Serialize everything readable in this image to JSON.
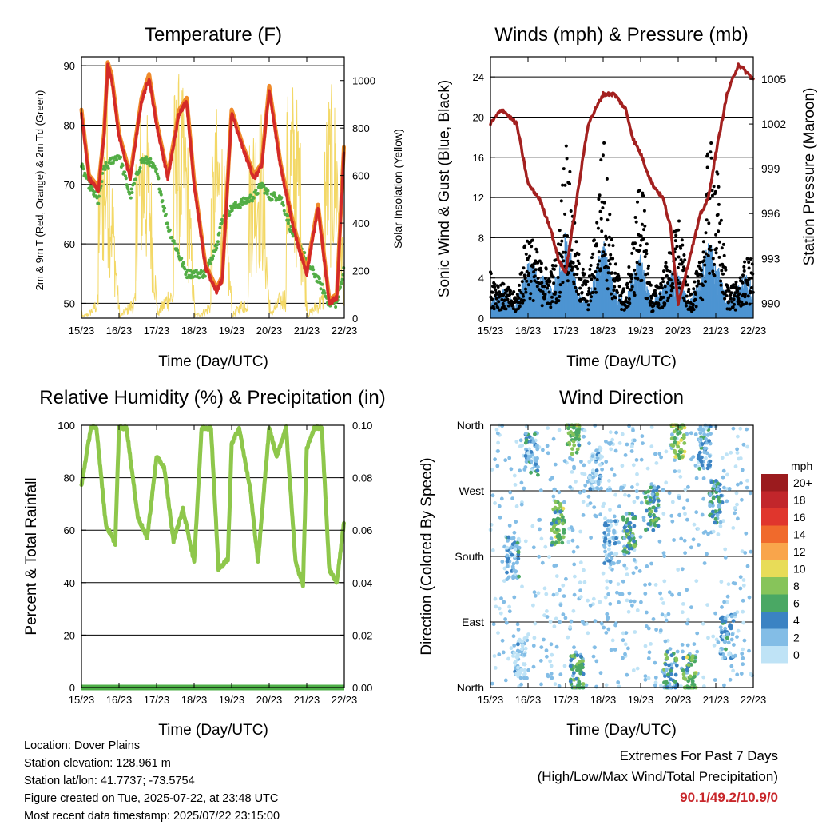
{
  "x_ticks": [
    "15/23",
    "16/23",
    "17/23",
    "18/23",
    "19/23",
    "20/23",
    "21/23",
    "22/23"
  ],
  "xlabel": "Time (Day/UTC)",
  "panels": {
    "temperature": {
      "title": "Temperature (F)",
      "ylabel_left": "2m & 9m T (Red, Orange) & 2m Td (Green)",
      "ylabel_right": "Solar Insolation (Yellow)",
      "left_ticks": [
        "50",
        "60",
        "70",
        "80",
        "90"
      ],
      "right_ticks": [
        "0",
        "200",
        "400",
        "600",
        "800",
        "1000"
      ]
    },
    "winds": {
      "title": "Winds (mph) & Pressure (mb)",
      "ylabel_left": "Sonic Wind & Gust (Blue, Black)",
      "ylabel_right": "Station Pressure (Maroon)",
      "left_ticks": [
        "0",
        "4",
        "8",
        "12",
        "16",
        "20",
        "24"
      ],
      "right_ticks": [
        "990",
        "993",
        "996",
        "999",
        "1002",
        "1005"
      ]
    },
    "humidity": {
      "title": "Relative Humidity (%) & Precipitation (in)",
      "ylabel_left": "Percent & Total Rainfall",
      "left_ticks": [
        "0",
        "20",
        "40",
        "60",
        "80",
        "100"
      ],
      "right_ticks": [
        "0.00",
        "0.02",
        "0.04",
        "0.06",
        "0.08",
        "0.10"
      ]
    },
    "direction": {
      "title": "Wind Direction",
      "ylabel_left": "Direction (Colored By Speed)",
      "left_ticks": [
        "North",
        "East",
        "South",
        "West",
        "North"
      ],
      "legend_title": "mph",
      "legend_labels": [
        "20+",
        "18",
        "16",
        "14",
        "12",
        "10",
        "8",
        "6",
        "4",
        "2",
        "0"
      ],
      "legend_colors": [
        "#9b1b1e",
        "#c2262b",
        "#e0362d",
        "#f06a2c",
        "#f9a54b",
        "#e8dc58",
        "#87c45a",
        "#4aa864",
        "#3b83c3",
        "#83bde6",
        "#bfe3f6"
      ]
    }
  },
  "info": {
    "location": "Location: Dover Plains",
    "elevation": "Station elevation: 128.961 m",
    "latlon": "Station lat/lon: 41.7737; -73.5754",
    "created": "Figure created on Tue, 2025-07-22, at 23:48 UTC",
    "recent": "Most recent data timestamp: 2025/07/22 23:15:00"
  },
  "extremes": {
    "title": "Extremes For Past 7 Days",
    "subtitle": "(High/Low/Max Wind/Total Precipitation)",
    "values": "90.1/49.2/10.9/0"
  },
  "colors": {
    "temp_2m": "#d42a28",
    "temp_9m": "#f08a2a",
    "dewpoint": "#52ad45",
    "solar": "#f3d866",
    "wind": "#4e94d2",
    "gust": "#000000",
    "pressure": "#a3201f",
    "rh": "#8ec74b",
    "precip": "#4eaf47"
  },
  "chart_data": [
    {
      "type": "line",
      "title": "Temperature (F)",
      "xlabel": "Time (Day/UTC)",
      "ylabel": "2m & 9m T (Red, Orange) & 2m Td (Green)",
      "ylabel_right": "Solar Insolation (Yellow)",
      "x": [
        15.0,
        15.2,
        15.45,
        15.6,
        15.7,
        15.8,
        16.0,
        16.3,
        16.6,
        16.8,
        17.0,
        17.3,
        17.6,
        17.8,
        18.0,
        18.3,
        18.6,
        18.75,
        19.0,
        19.3,
        19.6,
        19.8,
        20.0,
        20.3,
        20.6,
        20.8,
        21.0,
        21.3,
        21.6,
        21.8,
        22.0
      ],
      "ylim": [
        47.5,
        91.5
      ],
      "ylim_right": [
        0,
        1100
      ],
      "series": [
        {
          "name": "2m T",
          "values": [
            82,
            71,
            69,
            78,
            90,
            88,
            78,
            71,
            84,
            88,
            80,
            71,
            82,
            84,
            70,
            56,
            52,
            54,
            82,
            76,
            71,
            73,
            86,
            73,
            64,
            59,
            55,
            66,
            50,
            51,
            77
          ]
        },
        {
          "name": "2m Td",
          "values": [
            73,
            70,
            67,
            73,
            73,
            74,
            75,
            68,
            74,
            74,
            72,
            63,
            58,
            55,
            55,
            55,
            60,
            64,
            66,
            67,
            68,
            70,
            68,
            68,
            62,
            60,
            57,
            54,
            50,
            50,
            56
          ]
        },
        {
          "name": "Solar Insolation",
          "values": [
            50,
            200,
            700,
            900,
            1000,
            700,
            50,
            500,
            950,
            850,
            100,
            900,
            1050,
            900,
            100,
            300,
            900,
            800,
            100,
            600,
            900,
            900,
            80,
            800,
            1050,
            900,
            100,
            600,
            1000,
            950,
            200
          ]
        }
      ]
    },
    {
      "type": "line",
      "title": "Winds (mph) & Pressure (mb)",
      "xlabel": "Time (Day/UTC)",
      "ylabel": "Sonic Wind & Gust (Blue, Black)",
      "ylabel_right": "Station Pressure (Maroon)",
      "x": [
        15.0,
        15.3,
        15.7,
        16.0,
        16.3,
        16.6,
        16.8,
        17.0,
        17.3,
        17.6,
        17.8,
        18.0,
        18.3,
        18.6,
        18.8,
        19.0,
        19.3,
        19.6,
        19.8,
        20.0,
        20.3,
        20.6,
        20.8,
        21.0,
        21.3,
        21.6,
        21.8,
        22.0
      ],
      "ylim": [
        0,
        26
      ],
      "ylim_right": [
        989,
        1006.5
      ],
      "series": [
        {
          "name": "Sonic Wind",
          "values": [
            1,
            2,
            1,
            4,
            3,
            2,
            3,
            6,
            2,
            1,
            3,
            5,
            2,
            1,
            3,
            4,
            1,
            2,
            3,
            3,
            1,
            3,
            5,
            4,
            1,
            2,
            3,
            2
          ]
        },
        {
          "name": "Gust",
          "values": [
            4,
            3,
            2,
            8,
            5,
            4,
            6,
            16,
            6,
            3,
            8,
            16,
            5,
            2,
            7,
            13,
            2,
            4,
            6,
            9,
            2,
            5,
            15,
            14,
            3,
            3,
            5,
            5
          ]
        },
        {
          "name": "Station Pressure",
          "values": [
            1002,
            1003,
            1002,
            998,
            997,
            995,
            993,
            992,
            997,
            1002,
            1003,
            1004,
            1004,
            1003,
            1001,
            1000,
            998,
            997,
            995,
            990,
            993,
            996,
            997,
            1000,
            1004,
            1006,
            1005.5,
            1005
          ]
        }
      ]
    },
    {
      "type": "line",
      "title": "Relative Humidity (%) & Precipitation (in)",
      "xlabel": "Time (Day/UTC)",
      "ylabel": "Percent & Total Rainfall",
      "x": [
        15.0,
        15.25,
        15.4,
        15.65,
        15.9,
        16.0,
        16.2,
        16.5,
        16.75,
        17.0,
        17.2,
        17.45,
        17.7,
        18.0,
        18.2,
        18.45,
        18.65,
        18.9,
        19.0,
        19.2,
        19.5,
        19.7,
        20.0,
        20.2,
        20.45,
        20.7,
        20.9,
        21.0,
        21.2,
        21.4,
        21.6,
        21.8,
        22.0
      ],
      "ylim": [
        0,
        100
      ],
      "ylim_right": [
        0,
        0.1
      ],
      "series": [
        {
          "name": "Relative Humidity",
          "values": [
            77,
            99,
            99,
            62,
            55,
            99,
            99,
            65,
            57,
            88,
            84,
            56,
            68,
            48,
            99,
            99,
            45,
            49,
            93,
            99,
            75,
            48,
            99,
            88,
            99,
            48,
            39,
            91,
            99,
            99,
            45,
            40,
            64
          ]
        },
        {
          "name": "Total Precipitation",
          "values": [
            0,
            0,
            0,
            0,
            0,
            0,
            0,
            0,
            0,
            0,
            0,
            0,
            0,
            0,
            0,
            0,
            0,
            0,
            0,
            0,
            0,
            0,
            0,
            0,
            0,
            0,
            0,
            0,
            0,
            0,
            0,
            0,
            0
          ]
        }
      ]
    },
    {
      "type": "scatter",
      "title": "Wind Direction",
      "xlabel": "Time (Day/UTC)",
      "ylabel": "Direction (Colored By Speed)",
      "y_categories": [
        "North",
        "East",
        "South",
        "West",
        "North"
      ],
      "ylim": [
        0,
        360
      ],
      "legend_title": "mph",
      "clusters": [
        {
          "x": 15.6,
          "direction": 180,
          "speed": 3
        },
        {
          "x": 15.8,
          "direction": 40,
          "speed": 1
        },
        {
          "x": 16.1,
          "direction": 320,
          "speed": 3
        },
        {
          "x": 16.8,
          "direction": 225,
          "speed": 7
        },
        {
          "x": 17.2,
          "direction": 350,
          "speed": 7
        },
        {
          "x": 17.3,
          "direction": 15,
          "speed": 6
        },
        {
          "x": 17.8,
          "direction": 300,
          "speed": 1
        },
        {
          "x": 18.2,
          "direction": 200,
          "speed": 2
        },
        {
          "x": 18.7,
          "direction": 210,
          "speed": 5
        },
        {
          "x": 19.3,
          "direction": 245,
          "speed": 5
        },
        {
          "x": 19.8,
          "direction": 20,
          "speed": 5
        },
        {
          "x": 20.0,
          "direction": 345,
          "speed": 8
        },
        {
          "x": 20.3,
          "direction": 15,
          "speed": 7
        },
        {
          "x": 20.7,
          "direction": 330,
          "speed": 3
        },
        {
          "x": 21.0,
          "direction": 255,
          "speed": 4
        },
        {
          "x": 21.3,
          "direction": 70,
          "speed": 3
        }
      ]
    }
  ]
}
